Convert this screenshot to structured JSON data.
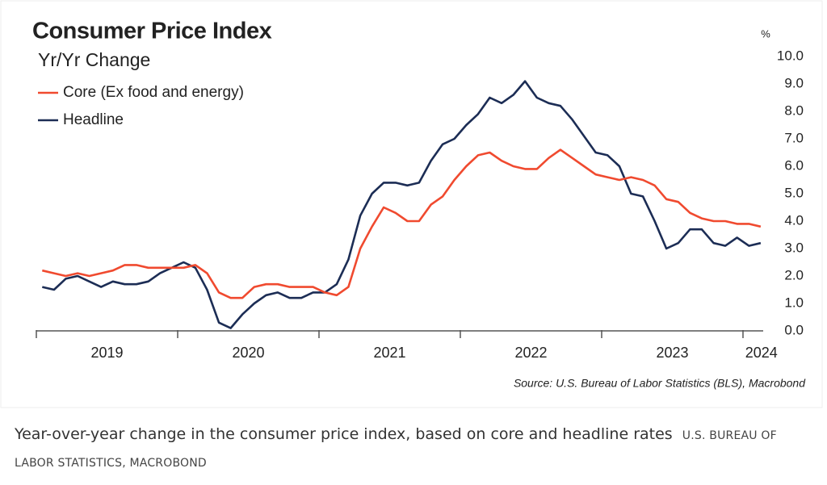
{
  "chart_data": {
    "type": "line",
    "title": "Consumer Price Index",
    "subtitle": "Yr/Yr Change",
    "y_unit": "%",
    "source": "Source: U.S. Bureau of Labor Statistics (BLS), Macrobond",
    "caption": "Year-over-year change in the consumer price index, based on core and headline rates",
    "caption_credit": "U.S. BUREAU OF LABOR STATISTICS, MACROBOND",
    "x": [
      2019.042,
      2019.125,
      2019.208,
      2019.292,
      2019.375,
      2019.458,
      2019.542,
      2019.625,
      2019.708,
      2019.792,
      2019.875,
      2019.958,
      2020.042,
      2020.125,
      2020.208,
      2020.292,
      2020.375,
      2020.458,
      2020.542,
      2020.625,
      2020.708,
      2020.792,
      2020.875,
      2020.958,
      2021.042,
      2021.125,
      2021.208,
      2021.292,
      2021.375,
      2021.458,
      2021.542,
      2021.625,
      2021.708,
      2021.792,
      2021.875,
      2021.958,
      2022.042,
      2022.125,
      2022.208,
      2022.292,
      2022.375,
      2022.458,
      2022.542,
      2022.625,
      2022.708,
      2022.792,
      2022.875,
      2022.958,
      2023.042,
      2023.125,
      2023.208,
      2023.292,
      2023.375,
      2023.458,
      2023.542,
      2023.625,
      2023.708,
      2023.792,
      2023.875,
      2023.958,
      2024.042,
      2024.125
    ],
    "series": [
      {
        "name": "Core (Ex food and energy)",
        "color": "#f04a2f",
        "values": [
          2.2,
          2.1,
          2.0,
          2.1,
          2.0,
          2.1,
          2.2,
          2.4,
          2.4,
          2.3,
          2.3,
          2.3,
          2.3,
          2.4,
          2.1,
          1.4,
          1.2,
          1.2,
          1.6,
          1.7,
          1.7,
          1.6,
          1.6,
          1.6,
          1.4,
          1.3,
          1.6,
          3.0,
          3.8,
          4.5,
          4.3,
          4.0,
          4.0,
          4.6,
          4.9,
          5.5,
          6.0,
          6.4,
          6.5,
          6.2,
          6.0,
          5.9,
          5.9,
          6.3,
          6.6,
          6.3,
          6.0,
          5.7,
          5.6,
          5.5,
          5.6,
          5.5,
          5.3,
          4.8,
          4.7,
          4.3,
          4.1,
          4.0,
          4.0,
          3.9,
          3.9,
          3.8
        ]
      },
      {
        "name": "Headline",
        "color": "#1c2d55",
        "values": [
          1.6,
          1.5,
          1.9,
          2.0,
          1.8,
          1.6,
          1.8,
          1.7,
          1.7,
          1.8,
          2.1,
          2.3,
          2.5,
          2.3,
          1.5,
          0.3,
          0.1,
          0.6,
          1.0,
          1.3,
          1.4,
          1.2,
          1.2,
          1.4,
          1.4,
          1.7,
          2.6,
          4.2,
          5.0,
          5.4,
          5.4,
          5.3,
          5.4,
          6.2,
          6.8,
          7.0,
          7.5,
          7.9,
          8.5,
          8.3,
          8.6,
          9.1,
          8.5,
          8.3,
          8.2,
          7.7,
          7.1,
          6.5,
          6.4,
          6.0,
          5.0,
          4.9,
          4.0,
          3.0,
          3.2,
          3.7,
          3.7,
          3.2,
          3.1,
          3.4,
          3.1,
          3.2
        ]
      }
    ],
    "xlim": [
      2019,
      2024.143
    ],
    "xticks": [
      {
        "value": 2019.5,
        "label": "2019"
      },
      {
        "value": 2020.5,
        "label": "2020"
      },
      {
        "value": 2021.5,
        "label": "2021"
      },
      {
        "value": 2022.5,
        "label": "2022"
      },
      {
        "value": 2023.5,
        "label": "2023"
      },
      {
        "value": 2024.13,
        "label": "2024"
      }
    ],
    "xbounds": [
      2019,
      2020,
      2021,
      2022,
      2023,
      2024
    ],
    "ylim": [
      0,
      10
    ],
    "yticks": [
      {
        "value": 0,
        "label": "0.0"
      },
      {
        "value": 1,
        "label": "1.0"
      },
      {
        "value": 2,
        "label": "2.0"
      },
      {
        "value": 3,
        "label": "3.0"
      },
      {
        "value": 4,
        "label": "4.0"
      },
      {
        "value": 5,
        "label": "5.0"
      },
      {
        "value": 6,
        "label": "6.0"
      },
      {
        "value": 7,
        "label": "7.0"
      },
      {
        "value": 8,
        "label": "8.0"
      },
      {
        "value": 9,
        "label": "9.0"
      },
      {
        "value": 10,
        "label": "10.0"
      }
    ],
    "y_axis_side": "right",
    "grid": false
  }
}
